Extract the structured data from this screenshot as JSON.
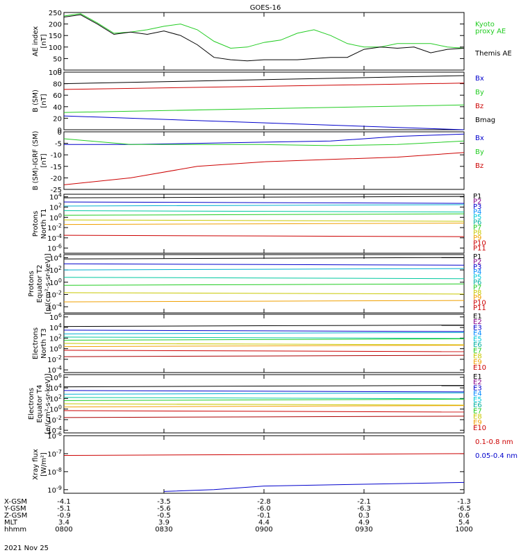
{
  "title": "GOES-16",
  "date_label": "2021 Nov 25",
  "colors": {
    "black": "#000000",
    "blue": "#0000cc",
    "green": "#22cc22",
    "red": "#cc0000",
    "line_green": "#33dd33",
    "cyan": "#00c8d8",
    "teal": "#00b0a0",
    "yellow": "#d8d800",
    "orange": "#f0a000",
    "darkred": "#aa0000"
  },
  "ephemeris": {
    "row_labels": [
      "X-GSM",
      "Y-GSM",
      "Z-GSM",
      "MLT",
      "hhmm"
    ],
    "columns": [
      [
        "-4.1",
        "-5.1",
        "-0.9",
        "3.4",
        "0800"
      ],
      [
        "-3.5",
        "-5.6",
        "-0.5",
        "3.9",
        "0830"
      ],
      [
        "-2.8",
        "-6.0",
        "-0.1",
        "4.4",
        "0900"
      ],
      [
        "-2.1",
        "-6.3",
        "0.3",
        "4.9",
        "0930"
      ],
      [
        "-1.3",
        "-6.5",
        "0.6",
        "5.4",
        "1000"
      ]
    ]
  },
  "chart_data": [
    {
      "type": "line",
      "ylabel": [
        "AE index",
        "[nT]"
      ],
      "ylim": [
        0,
        250
      ],
      "yticks": [
        "250",
        "200",
        "150",
        "100",
        "50",
        "0"
      ],
      "x_time_range": [
        "0800",
        "1000"
      ],
      "series": [
        {
          "name": "Kyoto proxy AE",
          "legend": [
            "Kyoto",
            "proxy AE"
          ],
          "color": "#22cc22",
          "x": [
            "0800",
            "0805",
            "0810",
            "0815",
            "0820",
            "0825",
            "0830",
            "0835",
            "0840",
            "0845",
            "0850",
            "0855",
            "0900",
            "0905",
            "0910",
            "0915",
            "0920",
            "0925",
            "0930",
            "0935",
            "0940",
            "0945",
            "0950",
            "0955",
            "1000"
          ],
          "values": [
            235,
            245,
            205,
            160,
            165,
            175,
            190,
            200,
            175,
            125,
            95,
            100,
            120,
            130,
            160,
            175,
            150,
            115,
            100,
            100,
            115,
            115,
            115,
            100,
            95
          ]
        },
        {
          "name": "Themis AE",
          "legend": [
            "Themis AE"
          ],
          "color": "#000000",
          "x": [
            "0800",
            "0805",
            "0810",
            "0815",
            "0820",
            "0825",
            "0830",
            "0835",
            "0840",
            "0845",
            "0850",
            "0855",
            "0900",
            "0905",
            "0910",
            "0915",
            "0920",
            "0925",
            "0930",
            "0935",
            "0940",
            "0945",
            "0950",
            "0955",
            "1000"
          ],
          "values": [
            230,
            240,
            200,
            155,
            165,
            155,
            170,
            150,
            110,
            55,
            45,
            40,
            45,
            45,
            45,
            50,
            55,
            55,
            90,
            100,
            95,
            100,
            75,
            90,
            95
          ]
        }
      ]
    },
    {
      "type": "line",
      "ylabel": [
        "B (SM)",
        "[nT]"
      ],
      "ylim": [
        0,
        100
      ],
      "yticks": [
        "100",
        "80",
        "60",
        "40",
        "20",
        "0"
      ],
      "series": [
        {
          "name": "Bx",
          "color": "#0000cc",
          "x": [
            "0800",
            "1000"
          ],
          "values": [
            24,
            0
          ]
        },
        {
          "name": "By",
          "color": "#22cc22",
          "x": [
            "0800",
            "1000"
          ],
          "values": [
            30,
            43
          ]
        },
        {
          "name": "Bz",
          "color": "#cc0000",
          "x": [
            "0800",
            "1000"
          ],
          "values": [
            70,
            81
          ]
        },
        {
          "name": "Bmag",
          "color": "#000000",
          "x": [
            "0800",
            "1000"
          ],
          "values": [
            80,
            94
          ]
        }
      ]
    },
    {
      "type": "line",
      "ylabel": [
        "B (SM)-IGRF (SM)",
        "[nT]"
      ],
      "ylim": [
        -25,
        0
      ],
      "yticks": [
        "0",
        "-5",
        "-10",
        "-15",
        "-20",
        "-25"
      ],
      "series": [
        {
          "name": "Bx",
          "color": "#0000cc",
          "x": [
            "0800",
            "0820",
            "0840",
            "0900",
            "0920",
            "0940",
            "1000"
          ],
          "values": [
            -5.5,
            -5.5,
            -5,
            -4.5,
            -4,
            -2,
            -1
          ]
        },
        {
          "name": "By",
          "color": "#22cc22",
          "x": [
            "0800",
            "0820",
            "0840",
            "0900",
            "0920",
            "0940",
            "1000"
          ],
          "values": [
            -3,
            -5.5,
            -5.5,
            -5.5,
            -6,
            -5.5,
            -4
          ]
        },
        {
          "name": "Bz",
          "color": "#cc0000",
          "x": [
            "0800",
            "0820",
            "0840",
            "0900",
            "0920",
            "0940",
            "1000"
          ],
          "values": [
            -23,
            -20,
            -15,
            -13,
            -12,
            -11,
            -9
          ]
        }
      ]
    },
    {
      "type": "line",
      "scale": "log",
      "ylabel": [
        "Protons",
        "North T1"
      ],
      "yticks": [
        "10^4",
        "10^2",
        "10^0",
        "10^-2",
        "10^-4",
        "10^-6"
      ],
      "ylim_exp": [
        -7,
        4.5
      ],
      "channels": [
        "P1",
        "P2",
        "P3",
        "P4",
        "P5",
        "P6",
        "P7",
        "P8",
        "P9",
        "P10",
        "P11"
      ],
      "levels_exp": [
        3.8,
        3.0,
        2.2,
        1.3,
        0.4,
        -0.5,
        -1.4,
        -3.5
      ]
    },
    {
      "type": "line",
      "scale": "log",
      "ylabel": [
        "Protons",
        "Equator T2",
        "[p/(cm²-s-sr-keV)]"
      ],
      "yticks": [
        "10^4",
        "10^2",
        "10^0",
        "10^-2",
        "10^-4"
      ],
      "ylim_exp": [
        -5,
        4.5
      ],
      "channels": [
        "P1",
        "P2",
        "P3",
        "P4",
        "P5",
        "P6",
        "P7",
        "P8",
        "P9",
        "P10",
        "P11"
      ],
      "levels_exp": [
        3.8,
        3.0,
        2.0,
        0.8,
        -0.5,
        -1.7,
        -3.2
      ]
    },
    {
      "type": "line",
      "scale": "log",
      "ylabel": [
        "Electrons",
        "North T3"
      ],
      "yticks": [
        "10^6",
        "10^4",
        "10^2",
        "10^0",
        "10^-2",
        "10^-4"
      ],
      "ylim_exp": [
        -4.5,
        6.5
      ],
      "channels": [
        "E1",
        "E2",
        "E3",
        "E4",
        "E5",
        "E6",
        "E7",
        "E8",
        "E9",
        "E10"
      ],
      "levels_exp": [
        4.2,
        3.5,
        2.8,
        2.2,
        1.6,
        1.0,
        0.4,
        -0.3,
        -1.5
      ]
    },
    {
      "type": "line",
      "scale": "log",
      "ylabel": [
        "Electrons",
        "Equator T4",
        "[e/(cm²-s-sr-keV)]"
      ],
      "yticks": [
        "10^6",
        "10^4",
        "10^2",
        "10^0",
        "10^-2",
        "10^-4"
      ],
      "ylim_exp": [
        -4.5,
        6.5
      ],
      "channels": [
        "E1",
        "E2",
        "E3",
        "E4",
        "E5",
        "E6",
        "E7",
        "E8",
        "E9",
        "E10"
      ],
      "levels_exp": [
        4.2,
        3.5,
        2.8,
        2.2,
        1.6,
        1.0,
        0.4,
        -0.3,
        -1.6
      ]
    },
    {
      "type": "line",
      "scale": "log",
      "ylabel": [
        "Xray flux",
        "[W/m²]"
      ],
      "yticks": [
        "10^-6",
        "10^-7",
        "10^-8",
        "10^-9"
      ],
      "ylim_exp": [
        -9.2,
        -6
      ],
      "series": [
        {
          "name": "0.1-0.8 nm",
          "color": "#cc0000",
          "x": [
            "0800",
            "1000"
          ],
          "values_exp": [
            -7.1,
            -7.0
          ]
        },
        {
          "name": "0.05-0.4 nm",
          "color": "#0000cc",
          "x": [
            "0830",
            "0845",
            "0900",
            "0930",
            "1000"
          ],
          "values_exp": [
            -9.1,
            -9.0,
            -8.8,
            -8.7,
            -8.6
          ]
        }
      ]
    }
  ]
}
